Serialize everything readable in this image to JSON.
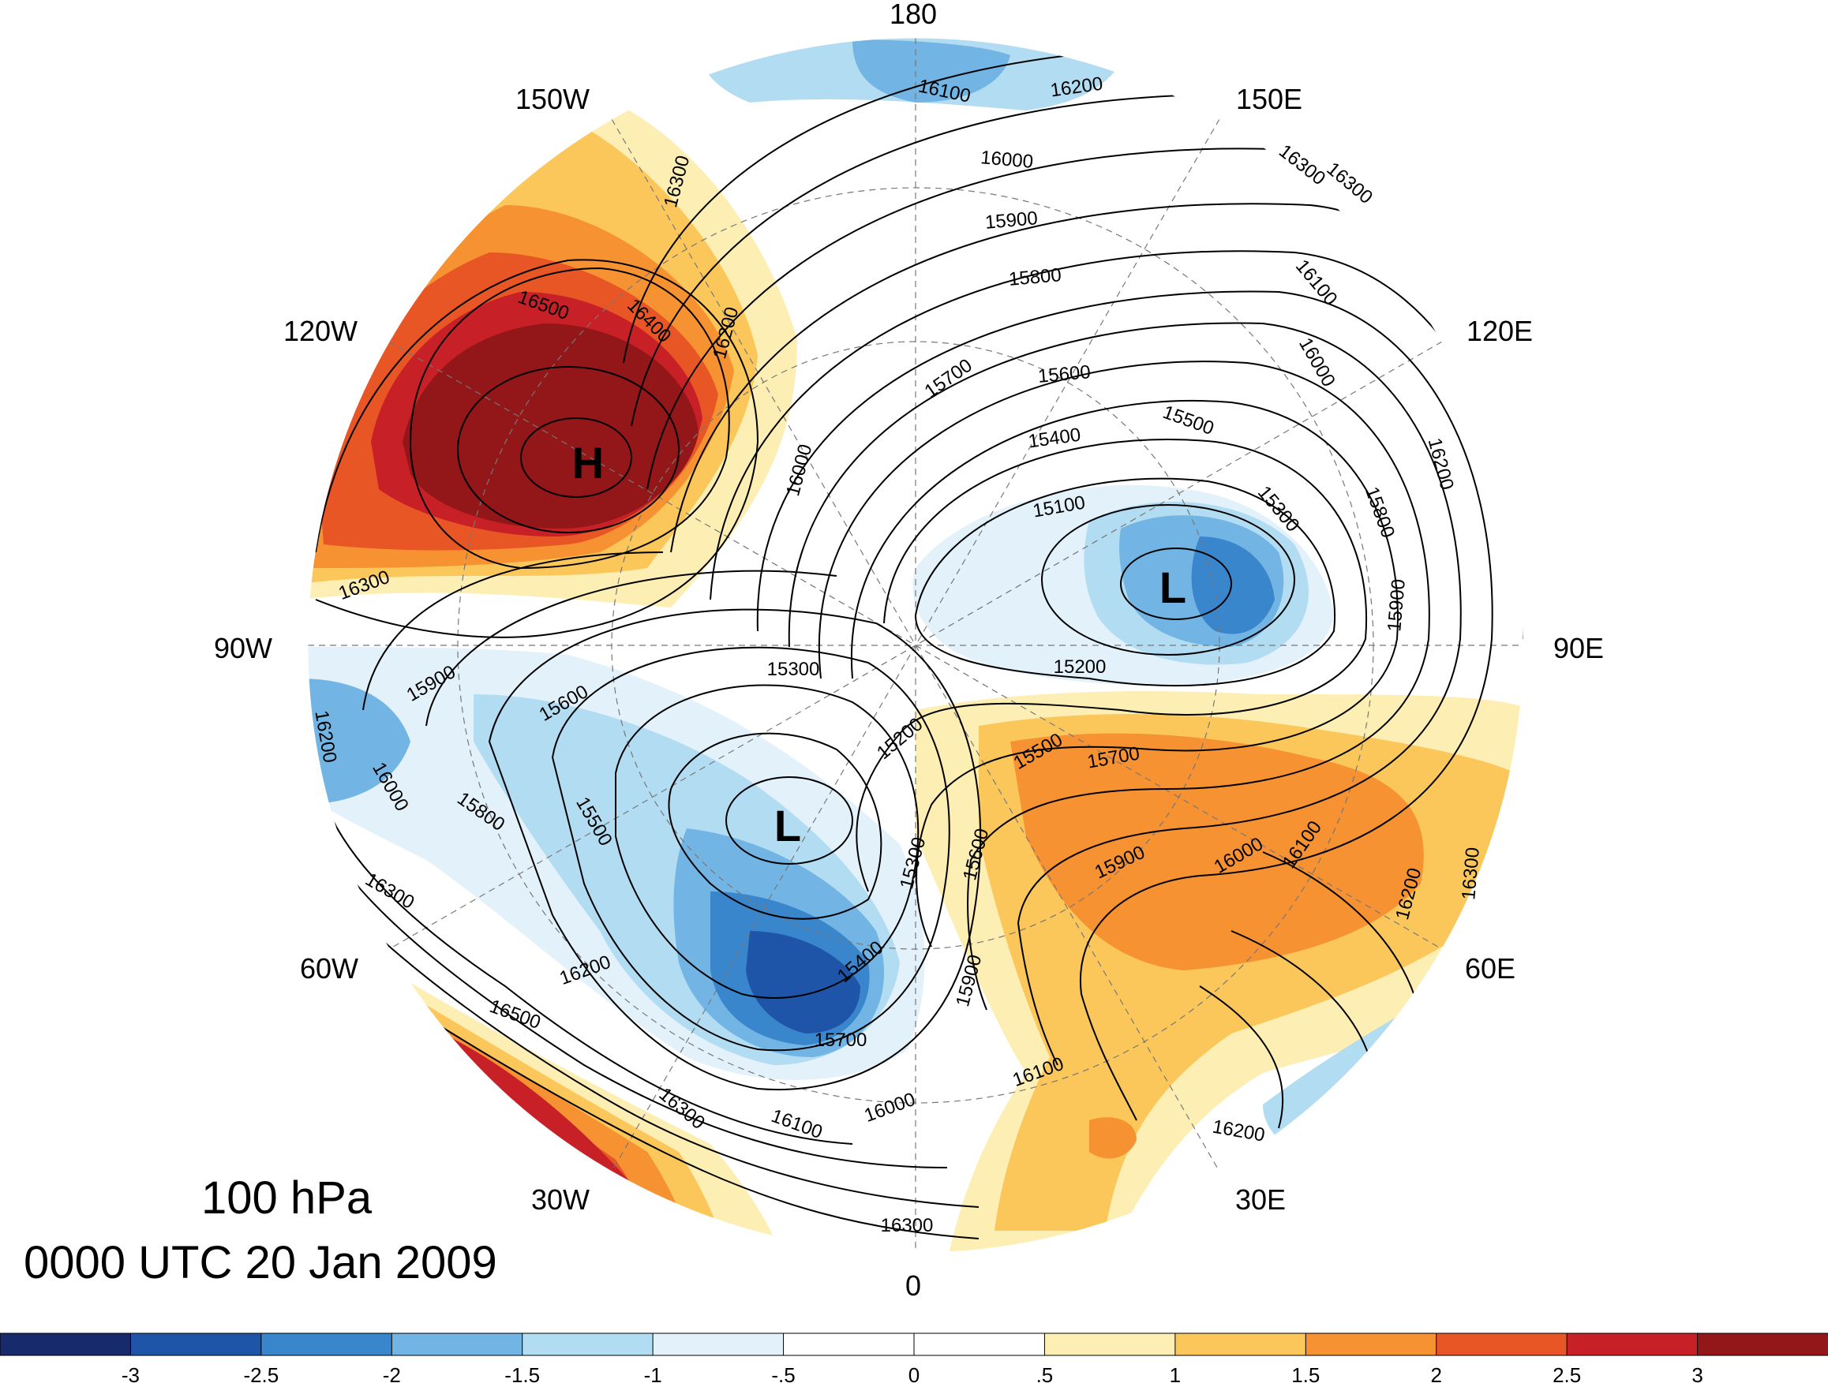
{
  "caption": {
    "level": "100 hPa",
    "time": "0000 UTC 20 Jan 2009"
  },
  "longitude_labels": [
    "180",
    "150E",
    "120E",
    "90E",
    "60E",
    "30E",
    "0",
    "30W",
    "60W",
    "90W",
    "120W",
    "150W"
  ],
  "centers": [
    {
      "id": "high-west",
      "label": "H"
    },
    {
      "id": "low-east",
      "label": "L"
    },
    {
      "id": "low-south",
      "label": "L"
    }
  ],
  "contour_labels": [
    "16100",
    "16200",
    "16300",
    "16000",
    "15900",
    "15800",
    "16100",
    "16000",
    "15700",
    "15600",
    "15500",
    "15400",
    "15300",
    "15100",
    "15800",
    "15900",
    "16200",
    "16300",
    "16300",
    "16500",
    "16400",
    "16200",
    "16000",
    "16300",
    "15300",
    "15900",
    "15600",
    "16200",
    "16000",
    "15800",
    "15500",
    "15200",
    "15200",
    "15300",
    "15500",
    "15700",
    "15600",
    "15900",
    "16000",
    "16100",
    "16200",
    "16300",
    "15400",
    "15700",
    "15900",
    "16100",
    "16000",
    "16100",
    "16200",
    "16300",
    "16200",
    "16500",
    "16300",
    "16300"
  ],
  "colorbar": {
    "colors": [
      "#172a6b",
      "#1f55a8",
      "#3a86cc",
      "#72b5e4",
      "#b2dcf2",
      "#e2f1fa",
      "#ffffff",
      "#ffffff",
      "#fdeeb3",
      "#fbc75b",
      "#f69232",
      "#e85626",
      "#c82027",
      "#931719"
    ],
    "tick_labels": [
      "-3",
      "-2.5",
      "-2",
      "-1.5",
      "-1",
      "-.5",
      "0",
      ".5",
      "1",
      "1.5",
      "2",
      "2.5",
      "3"
    ]
  }
}
